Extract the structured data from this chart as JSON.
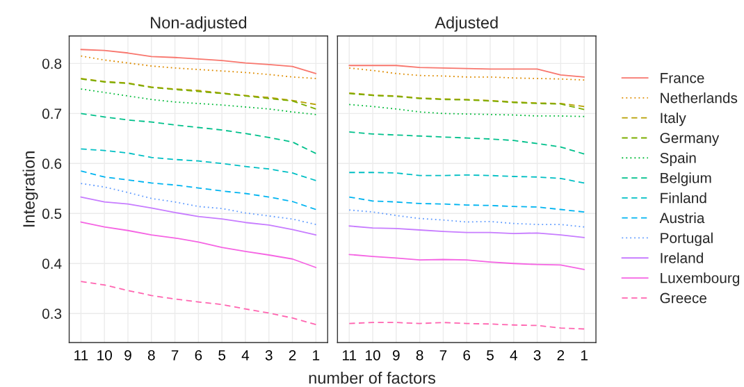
{
  "chart_data": [
    {
      "type": "line",
      "title": "Non-adjusted",
      "ylabel": "Integration",
      "xlabel": "number of factors",
      "x": [
        11,
        10,
        9,
        8,
        7,
        6,
        5,
        4,
        3,
        2,
        1
      ],
      "xlim": [
        11.5,
        0.5
      ],
      "xticks": [
        11,
        10,
        9,
        8,
        7,
        6,
        5,
        4,
        3,
        2,
        1
      ],
      "ylim": [
        0.242,
        0.855
      ],
      "yticks": [
        0.3,
        0.4,
        0.5,
        0.6,
        0.7,
        0.8
      ],
      "grid": true,
      "legend": false,
      "series": [
        {
          "color": "#f8766d",
          "line_style": "solid",
          "values": [
            0.828,
            0.826,
            0.821,
            0.814,
            0.812,
            0.809,
            0.806,
            0.801,
            0.798,
            0.794,
            0.78
          ]
        },
        {
          "color": "#de8c00",
          "line_style": "dotted",
          "values": [
            0.815,
            0.807,
            0.801,
            0.795,
            0.791,
            0.788,
            0.785,
            0.782,
            0.778,
            0.773,
            0.77
          ]
        },
        {
          "color": "#b79f00",
          "line_style": "dashed",
          "values": [
            0.77,
            0.764,
            0.761,
            0.753,
            0.749,
            0.746,
            0.741,
            0.736,
            0.732,
            0.726,
            0.718
          ]
        },
        {
          "color": "#7cae00",
          "line_style": "dashed",
          "values": [
            0.769,
            0.763,
            0.76,
            0.752,
            0.748,
            0.744,
            0.74,
            0.735,
            0.73,
            0.725,
            0.709
          ]
        },
        {
          "color": "#00ba38",
          "line_style": "dotted",
          "values": [
            0.749,
            0.742,
            0.735,
            0.728,
            0.723,
            0.72,
            0.717,
            0.713,
            0.709,
            0.703,
            0.698
          ]
        },
        {
          "color": "#00c08b",
          "line_style": "dashed",
          "values": [
            0.7,
            0.693,
            0.687,
            0.683,
            0.677,
            0.672,
            0.667,
            0.66,
            0.652,
            0.643,
            0.62
          ]
        },
        {
          "color": "#00bfc4",
          "line_style": "dashed",
          "values": [
            0.629,
            0.626,
            0.621,
            0.612,
            0.608,
            0.605,
            0.6,
            0.594,
            0.589,
            0.581,
            0.566
          ]
        },
        {
          "color": "#00b4f0",
          "line_style": "dashed",
          "values": [
            0.585,
            0.573,
            0.567,
            0.561,
            0.557,
            0.551,
            0.545,
            0.54,
            0.533,
            0.524,
            0.508
          ]
        },
        {
          "color": "#619cff",
          "line_style": "dotted",
          "values": [
            0.56,
            0.553,
            0.542,
            0.53,
            0.523,
            0.514,
            0.51,
            0.501,
            0.495,
            0.489,
            0.478
          ]
        },
        {
          "color": "#c77cff",
          "line_style": "solid",
          "values": [
            0.533,
            0.523,
            0.519,
            0.511,
            0.502,
            0.494,
            0.489,
            0.482,
            0.477,
            0.468,
            0.457
          ]
        },
        {
          "color": "#f564e3",
          "line_style": "solid",
          "values": [
            0.483,
            0.473,
            0.466,
            0.457,
            0.451,
            0.443,
            0.432,
            0.424,
            0.417,
            0.409,
            0.392
          ]
        },
        {
          "color": "#ff64b0",
          "line_style": "dashed",
          "values": [
            0.364,
            0.357,
            0.346,
            0.336,
            0.329,
            0.323,
            0.318,
            0.309,
            0.301,
            0.291,
            0.278
          ]
        }
      ]
    },
    {
      "type": "line",
      "title": "Adjusted",
      "tick_labels": "x",
      "x": [
        11,
        10,
        9,
        8,
        7,
        6,
        5,
        4,
        3,
        2,
        1
      ],
      "xlim": [
        11.5,
        0.5
      ],
      "xticks": [
        11,
        10,
        9,
        8,
        7,
        6,
        5,
        4,
        3,
        2,
        1
      ],
      "ylim": [
        0.242,
        0.855
      ],
      "yticks": [
        0.3,
        0.4,
        0.5,
        0.6,
        0.7,
        0.8
      ],
      "grid": true,
      "legend": "right",
      "series": [
        {
          "name": "France",
          "color": "#f8766d",
          "line_style": "solid",
          "values": [
            0.796,
            0.796,
            0.796,
            0.792,
            0.791,
            0.79,
            0.789,
            0.789,
            0.789,
            0.777,
            0.773
          ]
        },
        {
          "name": "Netherlands",
          "color": "#de8c00",
          "line_style": "dotted",
          "values": [
            0.791,
            0.786,
            0.78,
            0.776,
            0.775,
            0.773,
            0.773,
            0.771,
            0.77,
            0.769,
            0.767
          ]
        },
        {
          "name": "Italy",
          "color": "#b79f00",
          "line_style": "dashed",
          "values": [
            0.741,
            0.737,
            0.735,
            0.731,
            0.729,
            0.728,
            0.726,
            0.723,
            0.721,
            0.72,
            0.714
          ]
        },
        {
          "name": "Germany",
          "color": "#7cae00",
          "line_style": "dashed",
          "values": [
            0.74,
            0.736,
            0.734,
            0.73,
            0.728,
            0.727,
            0.725,
            0.722,
            0.72,
            0.719,
            0.708
          ]
        },
        {
          "name": "Spain",
          "color": "#00ba38",
          "line_style": "dotted",
          "values": [
            0.718,
            0.714,
            0.709,
            0.703,
            0.7,
            0.699,
            0.698,
            0.697,
            0.695,
            0.695,
            0.694
          ]
        },
        {
          "name": "Belgium",
          "color": "#00c08b",
          "line_style": "dashed",
          "values": [
            0.663,
            0.659,
            0.657,
            0.655,
            0.653,
            0.651,
            0.649,
            0.646,
            0.64,
            0.633,
            0.619
          ]
        },
        {
          "name": "Finland",
          "color": "#00bfc4",
          "line_style": "dashed",
          "values": [
            0.582,
            0.582,
            0.581,
            0.576,
            0.576,
            0.577,
            0.576,
            0.574,
            0.573,
            0.57,
            0.561
          ]
        },
        {
          "name": "Austria",
          "color": "#00b4f0",
          "line_style": "dashed",
          "values": [
            0.533,
            0.525,
            0.523,
            0.52,
            0.519,
            0.517,
            0.516,
            0.514,
            0.513,
            0.508,
            0.503
          ]
        },
        {
          "name": "Portugal",
          "color": "#619cff",
          "line_style": "dotted",
          "values": [
            0.507,
            0.503,
            0.496,
            0.49,
            0.487,
            0.483,
            0.484,
            0.48,
            0.478,
            0.478,
            0.473
          ]
        },
        {
          "name": "Ireland",
          "color": "#c77cff",
          "line_style": "solid",
          "values": [
            0.475,
            0.471,
            0.47,
            0.467,
            0.464,
            0.462,
            0.462,
            0.46,
            0.461,
            0.457,
            0.452
          ]
        },
        {
          "name": "Luxembourg",
          "color": "#f564e3",
          "line_style": "solid",
          "values": [
            0.418,
            0.414,
            0.411,
            0.407,
            0.408,
            0.407,
            0.403,
            0.4,
            0.398,
            0.397,
            0.388
          ]
        },
        {
          "name": "Greece",
          "color": "#ff64b0",
          "line_style": "dashed",
          "values": [
            0.28,
            0.282,
            0.282,
            0.28,
            0.282,
            0.28,
            0.279,
            0.277,
            0.276,
            0.271,
            0.269
          ]
        }
      ]
    }
  ]
}
